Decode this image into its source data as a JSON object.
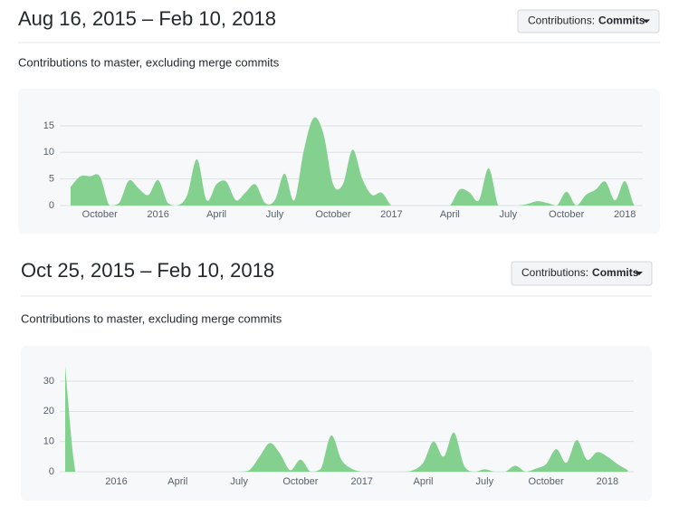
{
  "chart_data": [
    {
      "type": "area",
      "title": "Aug 16, 2015 – Feb 10, 2018",
      "dropdown_label": "Contributions:",
      "dropdown_value": "Commits",
      "subtitle": "Contributions to master, excluding merge commits",
      "color": "#84d08f",
      "grid": true,
      "ylim": [
        0,
        17
      ],
      "yticks": [
        0,
        5,
        10,
        15
      ],
      "categories": [
        null,
        null,
        null,
        "October",
        null,
        null,
        null,
        null,
        null,
        "2016",
        null,
        null,
        null,
        null,
        null,
        "April",
        null,
        null,
        null,
        null,
        null,
        "July",
        null,
        null,
        null,
        null,
        null,
        "October",
        null,
        null,
        null,
        null,
        null,
        "2017",
        null,
        null,
        null,
        null,
        null,
        "April",
        null,
        null,
        null,
        null,
        null,
        "July",
        null,
        null,
        null,
        null,
        null,
        "October",
        null,
        null,
        null,
        null,
        null,
        "2018",
        null,
        null
      ],
      "values": [
        3.5,
        5.5,
        5.5,
        5.5,
        0,
        0.5,
        4.7,
        3.2,
        2,
        4.8,
        0.5,
        0,
        2,
        8.7,
        1,
        4,
        4.5,
        1,
        2.5,
        4,
        0.5,
        1,
        6,
        1,
        10.5,
        16.5,
        13.5,
        4,
        4,
        10.5,
        5,
        2,
        2.4,
        0,
        0,
        0,
        0,
        0,
        0,
        0,
        3,
        2.5,
        1,
        7,
        0,
        0,
        0,
        0.3,
        0.8,
        0.5,
        0,
        2.6,
        0,
        2,
        3,
        4.5,
        1,
        4.6,
        0,
        0
      ]
    },
    {
      "type": "area",
      "title": "Oct 25, 2015 – Feb 10, 2018",
      "dropdown_label": "Contributions:",
      "dropdown_value": "Commits",
      "subtitle": "Contributions to master, excluding merge commits",
      "color": "#84d08f",
      "grid": true,
      "ylim": [
        0,
        35
      ],
      "yticks": [
        0,
        10,
        20,
        30
      ],
      "categories": [
        null,
        null,
        null,
        null,
        null,
        "2016",
        null,
        null,
        null,
        null,
        null,
        "April",
        null,
        null,
        null,
        null,
        null,
        "July",
        null,
        null,
        null,
        null,
        null,
        "October",
        null,
        null,
        null,
        null,
        null,
        "2017",
        null,
        null,
        null,
        null,
        null,
        "April",
        null,
        null,
        null,
        null,
        null,
        "July",
        null,
        null,
        null,
        null,
        null,
        "October",
        null,
        null,
        null,
        null,
        null,
        "2018",
        null,
        null
      ],
      "values": [
        35,
        0,
        0,
        0,
        0,
        0,
        0,
        0,
        0,
        0,
        0,
        0,
        0,
        0,
        0,
        0,
        0,
        0,
        0.5,
        5,
        9.5,
        6,
        0.5,
        4,
        0,
        1,
        12,
        4,
        1,
        0,
        0,
        0,
        0,
        0,
        0.5,
        3,
        10,
        5,
        13,
        2,
        0,
        0.8,
        0,
        0,
        2,
        0,
        1,
        2.5,
        7.5,
        3,
        10.5,
        4,
        6.5,
        5,
        2.5,
        0.5
      ]
    }
  ]
}
